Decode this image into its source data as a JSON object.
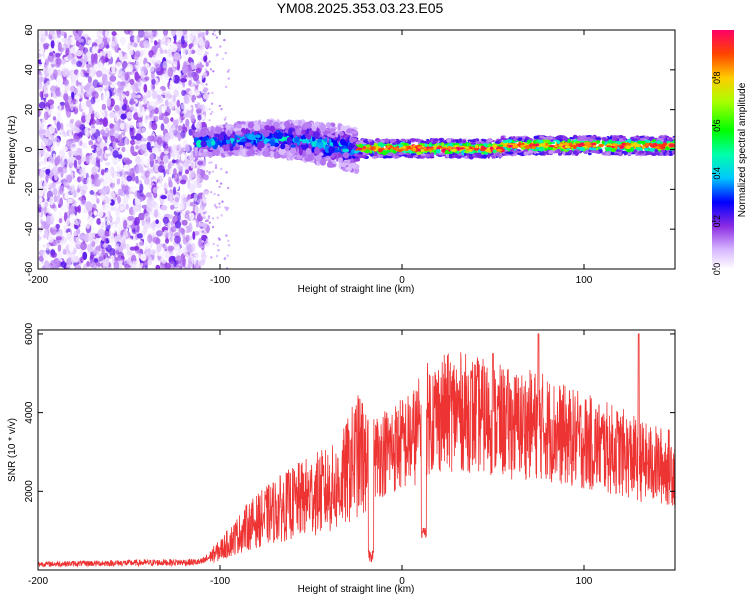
{
  "title": "YM08.2025.353.03.23.E05",
  "chart_data": [
    {
      "type": "heatmap",
      "name": "spectrogram",
      "xlabel": "Height of straight line (km)",
      "ylabel": "Frequency (Hz)",
      "xlim": [
        -200,
        150
      ],
      "ylim": [
        -60,
        60
      ],
      "xticks": [
        -200,
        -100,
        0,
        100
      ],
      "yticks": [
        -60,
        -40,
        -20,
        0,
        20,
        40,
        60
      ],
      "colorbar": {
        "label": "Normalized spectral amplitude",
        "range": [
          0,
          1
        ],
        "ticks": [
          "0.0",
          "0.2",
          "0.4",
          "0.6",
          "0.8"
        ],
        "tick_values": [
          0.0,
          0.2,
          0.4,
          0.6,
          0.8
        ]
      },
      "regions": [
        {
          "x": [
            -200,
            -107
          ],
          "description_level": "broadband noise",
          "amplitude_max": 0.15
        },
        {
          "x": [
            -113,
            -25
          ],
          "freq_range": [
            -20,
            15
          ],
          "amplitude_max": 0.45
        },
        {
          "x": [
            -25,
            150
          ],
          "freq_center": [
            0,
            2
          ],
          "amplitude_max": 1.0
        }
      ]
    },
    {
      "type": "line",
      "name": "snr",
      "xlabel": "Height of straight line (km)",
      "ylabel": "SNR (10 * v/v)",
      "xlim": [
        -200,
        150
      ],
      "ylim": [
        0,
        6100
      ],
      "xticks": [
        -200,
        -100,
        0,
        100
      ],
      "yticks": [
        2000,
        4000,
        6000
      ],
      "color": "#ee3333",
      "envelope": [
        {
          "x": -200,
          "y": 150
        },
        {
          "x": -150,
          "y": 180
        },
        {
          "x": -110,
          "y": 200
        },
        {
          "x": -100,
          "y": 500
        },
        {
          "x": -85,
          "y": 1100
        },
        {
          "x": -70,
          "y": 1500
        },
        {
          "x": -50,
          "y": 1900
        },
        {
          "x": -35,
          "y": 2100
        },
        {
          "x": -25,
          "y": 2900
        },
        {
          "x": -15,
          "y": 2900
        },
        {
          "x": -5,
          "y": 3100
        },
        {
          "x": 5,
          "y": 3300
        },
        {
          "x": 15,
          "y": 3900
        },
        {
          "x": 30,
          "y": 4050
        },
        {
          "x": 45,
          "y": 3900
        },
        {
          "x": 60,
          "y": 3700
        },
        {
          "x": 75,
          "y": 3700
        },
        {
          "x": 90,
          "y": 3400
        },
        {
          "x": 105,
          "y": 3200
        },
        {
          "x": 120,
          "y": 3000
        },
        {
          "x": 135,
          "y": 2700
        },
        {
          "x": 150,
          "y": 2600
        }
      ],
      "dips": [
        {
          "x": -17,
          "y": 200
        },
        {
          "x": 12,
          "y": 800
        }
      ],
      "peaks": [
        {
          "x": 75,
          "y": 6000
        },
        {
          "x": 130,
          "y": 6000
        },
        {
          "x": 50,
          "y": 5500
        }
      ]
    }
  ]
}
